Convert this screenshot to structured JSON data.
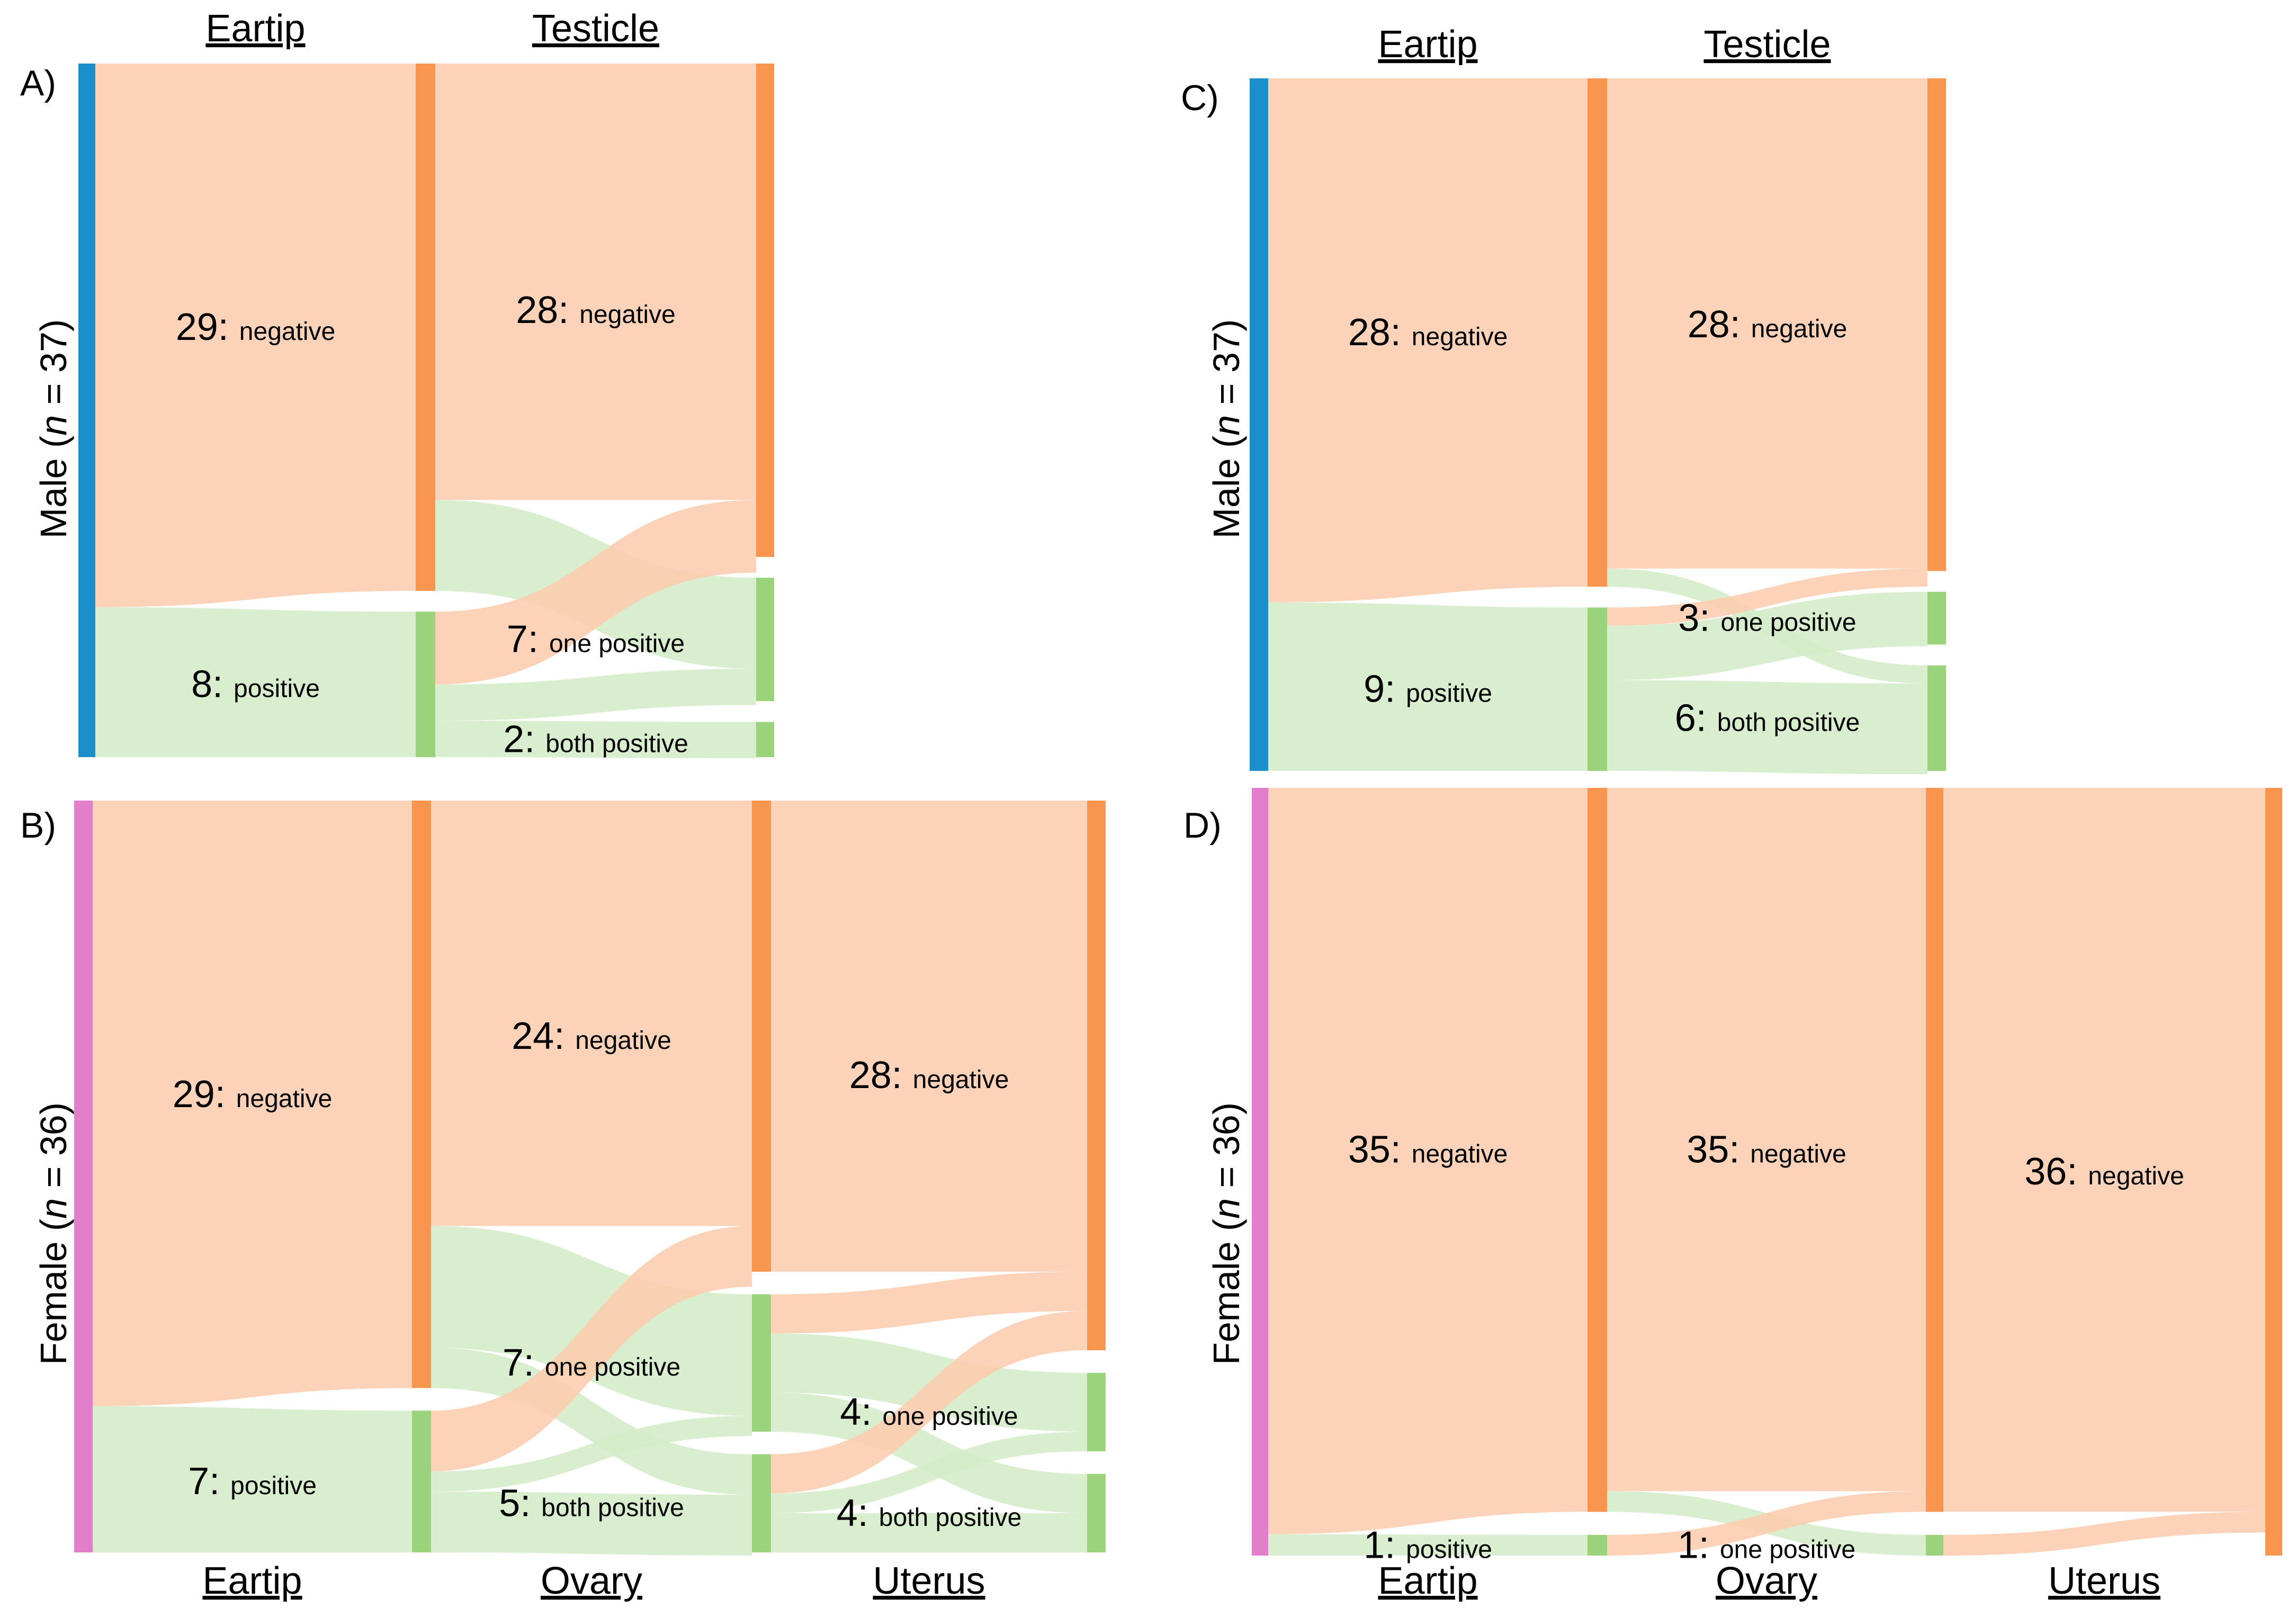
{
  "figure": {
    "colors": {
      "negative_node": "#F8954E",
      "positive_node": "#9BD37C",
      "negative_flow": "#FBCBAD",
      "positive_flow": "#D2EBC6",
      "male": "#1B8FC9",
      "female": "#E27FCB"
    }
  },
  "chart_data": [
    {
      "panel": "A)",
      "type": "sankey",
      "group": {
        "label": "Male (n = 37)",
        "prefix": "Male (",
        "italic": "n",
        "suffix": " = 37)",
        "n": 37,
        "sex": "male"
      },
      "header_position": "top",
      "columns": [
        {
          "name": "Eartip",
          "nodes": [
            {
              "id": "neg",
              "value": 29,
              "count_text": "29:",
              "label": "negative",
              "kind": "negative"
            },
            {
              "id": "pos",
              "value": 8,
              "count_text": "8:",
              "label": "positive",
              "kind": "positive"
            }
          ]
        },
        {
          "name": "Testicle",
          "nodes": [
            {
              "id": "neg",
              "value": 28,
              "count_text": "28:",
              "label": "negative",
              "kind": "negative"
            },
            {
              "id": "one",
              "value": 7,
              "count_text": "7:",
              "label": "one positive",
              "kind": "positive"
            },
            {
              "id": "both",
              "value": 2,
              "count_text": "2:",
              "label": "both positive",
              "kind": "positive"
            }
          ]
        }
      ],
      "flows": [
        {
          "stage": 0,
          "from": "neg",
          "to": "neg",
          "value": 29,
          "kind": "negative"
        },
        {
          "stage": 0,
          "from": "pos",
          "to": "pos",
          "value": 8,
          "kind": "positive"
        },
        {
          "stage": 1,
          "from": "neg",
          "to": "neg",
          "value": 24,
          "kind": "negative"
        },
        {
          "stage": 1,
          "from": "neg",
          "to": "one",
          "value": 5,
          "kind": "positive"
        },
        {
          "stage": 1,
          "from": "pos",
          "to": "neg",
          "value": 4,
          "kind": "negative"
        },
        {
          "stage": 1,
          "from": "pos",
          "to": "one",
          "value": 2,
          "kind": "positive"
        },
        {
          "stage": 1,
          "from": "pos",
          "to": "both",
          "value": 2,
          "kind": "positive"
        }
      ]
    },
    {
      "panel": "B)",
      "type": "sankey",
      "group": {
        "label": "Female (n = 36)",
        "prefix": "Female (",
        "italic": "n",
        "suffix": " = 36)",
        "n": 36,
        "sex": "female"
      },
      "header_position": "bottom",
      "columns": [
        {
          "name": "Eartip",
          "nodes": [
            {
              "id": "neg",
              "value": 29,
              "count_text": "29:",
              "label": "negative",
              "kind": "negative"
            },
            {
              "id": "pos",
              "value": 7,
              "count_text": "7:",
              "label": "positive",
              "kind": "positive"
            }
          ]
        },
        {
          "name": "Ovary",
          "nodes": [
            {
              "id": "neg",
              "value": 24,
              "count_text": "24:",
              "label": "negative",
              "kind": "negative"
            },
            {
              "id": "one",
              "value": 7,
              "count_text": "7:",
              "label": "one positive",
              "kind": "positive"
            },
            {
              "id": "both",
              "value": 5,
              "count_text": "5:",
              "label": "both positive",
              "kind": "positive"
            }
          ]
        },
        {
          "name": "Uterus",
          "nodes": [
            {
              "id": "neg",
              "value": 28,
              "count_text": "28:",
              "label": "negative",
              "kind": "negative"
            },
            {
              "id": "one",
              "value": 4,
              "count_text": "4:",
              "label": "one positive",
              "kind": "positive"
            },
            {
              "id": "both",
              "value": 4,
              "count_text": "4:",
              "label": "both positive",
              "kind": "positive"
            }
          ]
        }
      ],
      "flows": [
        {
          "stage": 0,
          "from": "neg",
          "to": "neg",
          "value": 29,
          "kind": "negative"
        },
        {
          "stage": 0,
          "from": "pos",
          "to": "pos",
          "value": 7,
          "kind": "positive"
        },
        {
          "stage": 1,
          "from": "neg",
          "to": "neg",
          "value": 21,
          "kind": "negative"
        },
        {
          "stage": 1,
          "from": "neg",
          "to": "one",
          "value": 6,
          "kind": "positive"
        },
        {
          "stage": 1,
          "from": "neg",
          "to": "both",
          "value": 2,
          "kind": "positive"
        },
        {
          "stage": 1,
          "from": "pos",
          "to": "neg",
          "value": 3,
          "kind": "negative"
        },
        {
          "stage": 1,
          "from": "pos",
          "to": "one",
          "value": 1,
          "kind": "positive"
        },
        {
          "stage": 1,
          "from": "pos",
          "to": "both",
          "value": 3,
          "kind": "positive"
        },
        {
          "stage": 2,
          "from": "neg",
          "to": "neg",
          "value": 24,
          "kind": "negative"
        },
        {
          "stage": 2,
          "from": "one",
          "to": "neg",
          "value": 2,
          "kind": "negative"
        },
        {
          "stage": 2,
          "from": "one",
          "to": "one",
          "value": 3,
          "kind": "positive"
        },
        {
          "stage": 2,
          "from": "one",
          "to": "both",
          "value": 2,
          "kind": "positive"
        },
        {
          "stage": 2,
          "from": "both",
          "to": "neg",
          "value": 2,
          "kind": "negative"
        },
        {
          "stage": 2,
          "from": "both",
          "to": "one",
          "value": 1,
          "kind": "positive"
        },
        {
          "stage": 2,
          "from": "both",
          "to": "both",
          "value": 2,
          "kind": "positive"
        }
      ]
    },
    {
      "panel": "C)",
      "type": "sankey",
      "group": {
        "label": "Male (n = 37)",
        "prefix": "Male (",
        "italic": "n",
        "suffix": " = 37)",
        "n": 37,
        "sex": "male"
      },
      "header_position": "top",
      "columns": [
        {
          "name": "Eartip",
          "nodes": [
            {
              "id": "neg",
              "value": 28,
              "count_text": "28:",
              "label": "negative",
              "kind": "negative"
            },
            {
              "id": "pos",
              "value": 9,
              "count_text": "9:",
              "label": "positive",
              "kind": "positive"
            }
          ]
        },
        {
          "name": "Testicle",
          "nodes": [
            {
              "id": "neg",
              "value": 28,
              "count_text": "28:",
              "label": "negative",
              "kind": "negative"
            },
            {
              "id": "one",
              "value": 3,
              "count_text": "3:",
              "label": "one positive",
              "kind": "positive"
            },
            {
              "id": "both",
              "value": 6,
              "count_text": "6:",
              "label": "both positive",
              "kind": "positive"
            }
          ]
        }
      ],
      "flows": [
        {
          "stage": 0,
          "from": "neg",
          "to": "neg",
          "value": 28,
          "kind": "negative"
        },
        {
          "stage": 0,
          "from": "pos",
          "to": "pos",
          "value": 9,
          "kind": "positive"
        },
        {
          "stage": 1,
          "from": "neg",
          "to": "neg",
          "value": 27,
          "kind": "negative"
        },
        {
          "stage": 1,
          "from": "neg",
          "to": "both",
          "value": 1,
          "kind": "positive"
        },
        {
          "stage": 1,
          "from": "pos",
          "to": "neg",
          "value": 1,
          "kind": "negative"
        },
        {
          "stage": 1,
          "from": "pos",
          "to": "one",
          "value": 3,
          "kind": "positive"
        },
        {
          "stage": 1,
          "from": "pos",
          "to": "both",
          "value": 5,
          "kind": "positive"
        }
      ]
    },
    {
      "panel": "D)",
      "type": "sankey",
      "group": {
        "label": "Female (n = 36)",
        "prefix": "Female (",
        "italic": "n",
        "suffix": " = 36)",
        "n": 36,
        "sex": "female"
      },
      "header_position": "bottom",
      "columns": [
        {
          "name": "Eartip",
          "nodes": [
            {
              "id": "neg",
              "value": 35,
              "count_text": "35:",
              "label": "negative",
              "kind": "negative"
            },
            {
              "id": "pos",
              "value": 1,
              "count_text": "1:",
              "label": "positive",
              "kind": "positive"
            }
          ]
        },
        {
          "name": "Ovary",
          "nodes": [
            {
              "id": "neg",
              "value": 35,
              "count_text": "35:",
              "label": "negative",
              "kind": "negative"
            },
            {
              "id": "one",
              "value": 1,
              "count_text": "1:",
              "label": "one positive",
              "kind": "positive"
            }
          ]
        },
        {
          "name": "Uterus",
          "nodes": [
            {
              "id": "neg",
              "value": 36,
              "count_text": "36:",
              "label": "negative",
              "kind": "negative"
            }
          ]
        }
      ],
      "flows": [
        {
          "stage": 0,
          "from": "neg",
          "to": "neg",
          "value": 35,
          "kind": "negative"
        },
        {
          "stage": 0,
          "from": "pos",
          "to": "pos",
          "value": 1,
          "kind": "positive"
        },
        {
          "stage": 1,
          "from": "neg",
          "to": "neg",
          "value": 34,
          "kind": "negative"
        },
        {
          "stage": 1,
          "from": "neg",
          "to": "one",
          "value": 1,
          "kind": "positive"
        },
        {
          "stage": 1,
          "from": "pos",
          "to": "neg",
          "value": 1,
          "kind": "negative"
        },
        {
          "stage": 2,
          "from": "neg",
          "to": "neg",
          "value": 35,
          "kind": "negative"
        },
        {
          "stage": 2,
          "from": "one",
          "to": "neg",
          "value": 1,
          "kind": "negative"
        }
      ]
    }
  ]
}
